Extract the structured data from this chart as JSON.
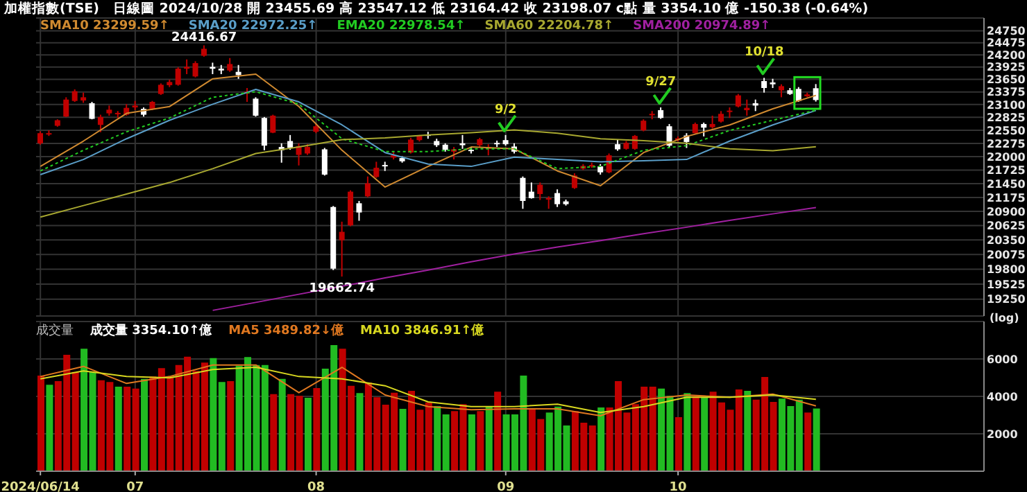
{
  "chart_data": [
    {
      "type": "candlestick",
      "title": "加權指數(TSE)",
      "subtitle": "日線圖 2024/10/28 開 23455.69 高 23547.12 低 23164.42 收 23198.07 c點 量 3354.10 億 -150.38 (-0.64%)",
      "ylabel": "(log)",
      "categories": [
        "2024/06/14",
        null,
        null,
        null,
        null,
        null,
        null,
        null,
        null,
        null,
        null,
        "07",
        null,
        null,
        null,
        null,
        null,
        null,
        null,
        null,
        null,
        null,
        null,
        null,
        null,
        null,
        null,
        null,
        null,
        null,
        null,
        null,
        "08",
        null,
        null,
        null,
        null,
        null,
        null,
        null,
        null,
        null,
        null,
        null,
        null,
        null,
        null,
        null,
        null,
        null,
        null,
        null,
        null,
        null,
        "09",
        null,
        null,
        null,
        null,
        null,
        null,
        null,
        null,
        null,
        null,
        null,
        null,
        null,
        null,
        null,
        null,
        null,
        null,
        null,
        "10",
        null,
        null,
        null,
        null,
        null,
        null,
        null,
        null,
        null,
        null,
        null,
        null,
        null,
        null,
        null,
        null,
        null,
        null,
        null,
        null,
        null,
        null,
        null,
        null,
        null,
        null,
        null,
        null,
        null,
        null,
        null,
        null,
        null,
        null,
        null
      ],
      "ohlc": [
        [
          22276,
          22528,
          22247,
          22489
        ],
        [
          22460,
          22548,
          22431,
          22489
        ],
        [
          22645,
          22783,
          22625,
          22763
        ],
        [
          22841,
          23258,
          22832,
          23208
        ],
        [
          23178,
          23431,
          23158,
          23390
        ],
        [
          23188,
          23360,
          23138,
          23258
        ],
        [
          23128,
          23158,
          22783,
          22793
        ],
        [
          22664,
          22881,
          22509,
          22832
        ],
        [
          22910,
          23078,
          22861,
          22989
        ],
        [
          22891,
          22959,
          22812,
          22920
        ],
        [
          22881,
          23108,
          22861,
          23028
        ],
        [
          23038,
          23178,
          22979,
          23078
        ],
        [
          23008,
          23038,
          22841,
          22881
        ],
        [
          23008,
          23178,
          22979,
          23158
        ],
        [
          23330,
          23562,
          23310,
          23532
        ],
        [
          23522,
          23644,
          23481,
          23593
        ],
        [
          23532,
          23920,
          23512,
          23889
        ],
        [
          23889,
          24097,
          23767,
          23930
        ],
        [
          23716,
          24056,
          23695,
          24014
        ],
        [
          24180,
          24416.67,
          24159,
          24338
        ],
        [
          23930,
          24024,
          23767,
          23889
        ],
        [
          23889,
          23972,
          23767,
          23849
        ],
        [
          23849,
          24128,
          23818,
          23993
        ],
        [
          23818,
          23972,
          23664,
          23746
        ],
        [
          23340,
          23461,
          23158,
          23380
        ],
        [
          23228,
          23258,
          22841,
          22861
        ],
        [
          22812,
          22832,
          22132,
          22228
        ],
        [
          22499,
          22881,
          22489,
          22861
        ],
        [
          22200,
          22276,
          21876,
          22132
        ],
        [
          22324,
          22450,
          22142,
          22180
        ],
        [
          22036,
          22276,
          21819,
          22218
        ],
        [
          22065,
          22257,
          22036,
          22200
        ],
        [
          22518,
          22683,
          22489,
          22635
        ],
        [
          22151,
          22180,
          21614,
          21633
        ],
        [
          20987,
          21006,
          19783,
          19809
        ],
        [
          20345,
          20700,
          19662.74,
          20504
        ],
        [
          20629,
          21317,
          20611,
          21290
        ],
        [
          21060,
          21106,
          20718,
          20879
        ],
        [
          21197,
          21595,
          21179,
          21456
        ],
        [
          21585,
          21895,
          21567,
          21772
        ],
        [
          21829,
          21895,
          21707,
          21800
        ],
        [
          21980,
          22103,
          21942,
          22027
        ],
        [
          21971,
          22008,
          21876,
          21904
        ],
        [
          22084,
          22391,
          22065,
          22353
        ],
        [
          22343,
          22450,
          22314,
          22431
        ],
        [
          22460,
          22518,
          22372,
          22440
        ],
        [
          22324,
          22372,
          22200,
          22237
        ],
        [
          22247,
          22276,
          22103,
          22142
        ],
        [
          22103,
          22200,
          21942,
          22151
        ],
        [
          22276,
          22450,
          22161,
          22237
        ],
        [
          22142,
          22200,
          22065,
          22122
        ],
        [
          22237,
          22391,
          22200,
          22362
        ],
        [
          22161,
          22257,
          22027,
          22200
        ],
        [
          22285,
          22333,
          22200,
          22266
        ],
        [
          22343,
          22450,
          22228,
          22257
        ],
        [
          22209,
          22276,
          22065,
          22103
        ],
        [
          21567,
          21595,
          20951,
          21106
        ],
        [
          21290,
          21474,
          21152,
          21161
        ],
        [
          21243,
          21474,
          21125,
          21428
        ],
        [
          21133,
          21197,
          20951,
          21161
        ],
        [
          21262,
          21336,
          20987,
          21042
        ],
        [
          21097,
          21133,
          21015,
          21042
        ],
        [
          21363,
          21660,
          21345,
          21614
        ],
        [
          21754,
          21847,
          21726,
          21810
        ],
        [
          21800,
          21876,
          21772,
          21829
        ],
        [
          21800,
          21847,
          21633,
          21679
        ],
        [
          21679,
          22065,
          21660,
          22027
        ],
        [
          22257,
          22353,
          22122,
          22151
        ],
        [
          22161,
          22324,
          22142,
          22285
        ],
        [
          22161,
          22450,
          22142,
          22431
        ],
        [
          22548,
          22783,
          22528,
          22753
        ],
        [
          22871,
          22959,
          22783,
          22900
        ],
        [
          22979,
          23038,
          22793,
          22812
        ],
        [
          22635,
          22683,
          22200,
          22228
        ],
        [
          22343,
          22421,
          22314,
          22382
        ],
        [
          22440,
          22489,
          22180,
          22304
        ],
        [
          22489,
          22713,
          22470,
          22683
        ],
        [
          22683,
          22713,
          22421,
          22606
        ],
        [
          22615,
          22861,
          22586,
          22683
        ],
        [
          22734,
          22959,
          22713,
          22900
        ],
        [
          22940,
          23038,
          22812,
          22969
        ],
        [
          23058,
          23330,
          23038,
          23299
        ],
        [
          22979,
          23208,
          22861,
          23028
        ],
        [
          23128,
          23208,
          22959,
          23078
        ],
        [
          23613,
          23685,
          23360,
          23461
        ],
        [
          23583,
          23664,
          23461,
          23542
        ],
        [
          23411,
          23542,
          23258,
          23501
        ],
        [
          23411,
          23461,
          23310,
          23330
        ],
        [
          23441,
          23481,
          23158,
          23178
        ],
        [
          23279,
          23360,
          23258,
          23320
        ],
        [
          23455.69,
          23547.12,
          23164.42,
          23198.07
        ],
        null,
        null,
        null,
        null,
        null,
        null,
        null,
        null,
        null,
        null,
        null,
        null,
        null,
        null,
        null,
        null,
        null,
        null,
        null
      ],
      "colors": [
        "#c00000",
        "#c00000",
        "#c00000",
        "#c00000",
        "#c00000",
        "#c00000",
        "#ffffff",
        "#c00000",
        "#c00000",
        "#c00000",
        "#c00000",
        "#c00000",
        "#ffffff",
        "#c00000",
        "#c00000",
        "#c00000",
        "#c00000",
        "#c00000",
        "#c00000",
        "#c00000",
        "#ffffff",
        "#ffffff",
        "#c00000",
        "#ffffff",
        "#c00000",
        "#ffffff",
        "#ffffff",
        "#c00000",
        "#ffffff",
        "#ffffff",
        "#c00000",
        "#c00000",
        "#c00000",
        "#ffffff",
        "#ffffff",
        "#c00000",
        "#c00000",
        "#ffffff",
        "#c00000",
        "#c00000",
        "#ffffff",
        "#c00000",
        "#ffffff",
        "#c00000",
        "#c00000",
        "#ffffff",
        "#ffffff",
        "#ffffff",
        "#c00000",
        "#ffffff",
        "#ffffff",
        "#c00000",
        "#c00000",
        "#ffffff",
        "#ffffff",
        "#ffffff",
        "#ffffff",
        "#ffffff",
        "#c00000",
        "#c00000",
        "#ffffff",
        "#ffffff",
        "#c00000",
        "#c00000",
        "#c00000",
        "#ffffff",
        "#c00000",
        "#ffffff",
        "#c00000",
        "#c00000",
        "#c00000",
        "#c00000",
        "#ffffff",
        "#ffffff",
        "#c00000",
        "#ffffff",
        "#c00000",
        "#ffffff",
        "#c00000",
        "#c00000",
        "#c00000",
        "#c00000",
        "#c00000",
        "#ffffff",
        "#ffffff",
        "#ffffff",
        "#c00000",
        "#ffffff",
        "#ffffff",
        "#c00000",
        "#ffffff",
        null,
        null,
        null,
        null,
        null,
        null,
        null,
        null,
        null,
        null,
        null,
        null,
        null,
        null,
        null,
        null,
        null,
        null,
        null
      ],
      "series": [
        {
          "type": "line",
          "name": "SMA10 23299.59↑",
          "color": "#d08a30",
          "values": [
            21800,
            null,
            null,
            null,
            null,
            22324,
            null,
            null,
            null,
            null,
            22910,
            null,
            null,
            null,
            null,
            23058,
            null,
            null,
            null,
            null,
            23664,
            null,
            null,
            null,
            null,
            23767,
            null,
            null,
            null,
            null,
            23058,
            null,
            null,
            null,
            null,
            22132,
            null,
            null,
            null,
            null,
            21382,
            null,
            null,
            null,
            null,
            21800,
            null,
            null,
            null,
            null,
            22200,
            null,
            null,
            null,
            null,
            22161,
            null,
            null,
            null,
            null,
            21707,
            null,
            null,
            null,
            null,
            21410,
            null,
            null,
            null,
            null,
            22084,
            null,
            null,
            null,
            null,
            22421,
            null,
            null,
            null,
            null,
            22664,
            null,
            null,
            null,
            null,
            23008,
            null,
            null,
            null,
            null,
            23299.59,
            null,
            null,
            null,
            null,
            null,
            null,
            null,
            null,
            null,
            null,
            null,
            null,
            null,
            null,
            null,
            null,
            null,
            null,
            null
          ]
        },
        {
          "type": "line",
          "name": "SMA20 22972.25↑",
          "color": "#5a9ec8",
          "values": [
            21633,
            null,
            null,
            null,
            null,
            21942,
            null,
            null,
            null,
            null,
            22372,
            null,
            null,
            null,
            null,
            22763,
            null,
            null,
            null,
            null,
            23108,
            null,
            null,
            null,
            null,
            23431,
            null,
            null,
            null,
            null,
            23158,
            null,
            null,
            null,
            null,
            22664,
            null,
            null,
            null,
            null,
            22084,
            null,
            null,
            null,
            null,
            21847,
            null,
            null,
            null,
            null,
            21800,
            null,
            null,
            null,
            null,
            21990,
            null,
            null,
            null,
            null,
            21942,
            null,
            null,
            null,
            null,
            21895,
            null,
            null,
            null,
            null,
            21914,
            null,
            null,
            null,
            null,
            21942,
            null,
            null,
            null,
            null,
            22324,
            null,
            null,
            null,
            null,
            22664,
            null,
            null,
            null,
            null,
            22972.25,
            null,
            null,
            null,
            null,
            null,
            null,
            null,
            null,
            null,
            null,
            null,
            null,
            null,
            null,
            null,
            null,
            null,
            null,
            null
          ]
        },
        {
          "type": "line",
          "name": "EMA20 22978.54↑",
          "color": "#22cc22",
          "line_style": "dotted",
          "values": [
            21707,
            null,
            null,
            null,
            null,
            22132,
            null,
            null,
            null,
            null,
            22518,
            null,
            null,
            null,
            null,
            22812,
            null,
            null,
            null,
            null,
            23258,
            null,
            null,
            null,
            null,
            23380,
            null,
            null,
            null,
            null,
            23108,
            null,
            null,
            null,
            null,
            22372,
            null,
            null,
            null,
            null,
            22103,
            null,
            null,
            null,
            null,
            22103,
            null,
            null,
            null,
            null,
            22161,
            null,
            null,
            null,
            null,
            22161,
            null,
            null,
            null,
            null,
            21754,
            null,
            null,
            null,
            null,
            21800,
            null,
            null,
            null,
            null,
            22132,
            null,
            null,
            null,
            null,
            22228,
            null,
            null,
            null,
            null,
            22548,
            null,
            null,
            null,
            null,
            22763,
            null,
            null,
            null,
            null,
            22978.54,
            null,
            null,
            null,
            null,
            null,
            null,
            null,
            null,
            null,
            null,
            null,
            null,
            null,
            null,
            null,
            null,
            null,
            null,
            null
          ]
        },
        {
          "type": "line",
          "name": "SMA60 22204.78↑",
          "color": "#a8a830",
          "values": [
            20790,
            null,
            null,
            null,
            null,
            21015,
            null,
            null,
            null,
            null,
            21243,
            null,
            null,
            null,
            null,
            21474,
            null,
            null,
            null,
            null,
            21754,
            null,
            null,
            null,
            null,
            22065,
            null,
            null,
            null,
            null,
            22200,
            null,
            null,
            null,
            null,
            22353,
            null,
            null,
            null,
            null,
            22391,
            null,
            null,
            null,
            null,
            22450,
            null,
            null,
            null,
            null,
            22499,
            null,
            null,
            null,
            null,
            22557,
            null,
            null,
            null,
            null,
            22489,
            null,
            null,
            null,
            null,
            22372,
            null,
            null,
            null,
            null,
            22333,
            null,
            null,
            null,
            null,
            22276,
            null,
            null,
            null,
            null,
            22161,
            null,
            null,
            null,
            null,
            22122,
            null,
            null,
            null,
            null,
            22204.78,
            null,
            null,
            null,
            null,
            null,
            null,
            null,
            null,
            null,
            null,
            null,
            null,
            null,
            null,
            null,
            null,
            null,
            null,
            null
          ]
        },
        {
          "type": "line",
          "name": "SMA200 20974.89↑",
          "color": "#a020a0",
          "values": [
            null,
            null,
            null,
            null,
            null,
            null,
            null,
            null,
            null,
            null,
            null,
            null,
            null,
            null,
            null,
            null,
            null,
            null,
            null,
            null,
            19050,
            null,
            null,
            null,
            null,
            19193,
            null,
            null,
            null,
            null,
            19340,
            null,
            null,
            null,
            null,
            19485,
            null,
            null,
            null,
            null,
            19638,
            null,
            null,
            null,
            null,
            19783,
            null,
            null,
            null,
            null,
            19937,
            null,
            null,
            null,
            null,
            20083,
            null,
            null,
            null,
            null,
            20213,
            null,
            null,
            null,
            null,
            20337,
            null,
            null,
            null,
            null,
            20469,
            null,
            null,
            null,
            null,
            20593,
            null,
            null,
            null,
            null,
            20727,
            null,
            null,
            null,
            null,
            20852,
            null,
            null,
            null,
            null,
            20974.89,
            null,
            null,
            null,
            null,
            null,
            null,
            null,
            null,
            null,
            null,
            null,
            null,
            null,
            null,
            null,
            null,
            null,
            null,
            null
          ]
        }
      ],
      "ylim": [
        18950,
        25050
      ],
      "yticks": [
        19250,
        19525,
        19800,
        20075,
        20350,
        20625,
        20900,
        21175,
        21450,
        21725,
        22000,
        22275,
        22550,
        22825,
        23100,
        23375,
        23650,
        23925,
        24200,
        24475,
        24750
      ],
      "log": "y",
      "grid": true,
      "legend": "top left",
      "tick_labels": "y",
      "annotations": [
        "24416.67",
        "19662.74",
        "9/2",
        "9/27",
        "10/18"
      ]
    },
    {
      "type": "bar",
      "title": "成交量",
      "categories": [
        "2024/06/14",
        null,
        null,
        null,
        null,
        null,
        null,
        null,
        null,
        null,
        null,
        "07",
        null,
        null,
        null,
        null,
        null,
        null,
        null,
        null,
        null,
        null,
        null,
        null,
        null,
        null,
        null,
        null,
        null,
        null,
        null,
        null,
        "08",
        null,
        null,
        null,
        null,
        null,
        null,
        null,
        null,
        null,
        null,
        null,
        null,
        null,
        null,
        null,
        null,
        null,
        null,
        null,
        null,
        null,
        "09",
        null,
        null,
        null,
        null,
        null,
        null,
        null,
        null,
        null,
        null,
        null,
        null,
        null,
        null,
        null,
        null,
        null,
        null,
        null,
        "10",
        null,
        null,
        null,
        null,
        null,
        null,
        null,
        null,
        null,
        null,
        null,
        null,
        null,
        null,
        null,
        null,
        null,
        null,
        null,
        null,
        null,
        null,
        null,
        null,
        null,
        null,
        null,
        null,
        null,
        null,
        null,
        null,
        null,
        null,
        null
      ],
      "series": [
        {
          "type": "bar",
          "name": "成交量 3354.10↑億",
          "values": [
            5111,
            4617,
            4815,
            6222,
            5308,
            6543,
            5308,
            4864,
            4765,
            4518,
            4518,
            4420,
            4938,
            5061,
            5506,
            5061,
            5679,
            6123,
            5358,
            5802,
            6049,
            4765,
            4815,
            5629,
            6098,
            5679,
            5679,
            4123,
            4938,
            4123,
            4024,
            3926,
            4444,
            5481,
            6740,
            6543,
            4568,
            4173,
            4740,
            3950,
            3555,
            4197,
            3333,
            4296,
            3284,
            3679,
            3481,
            3037,
            3210,
            3580,
            3037,
            3210,
            3457,
            4247,
            3037,
            3037,
            5111,
            3333,
            2790,
            3136,
            3457,
            2444,
            3210,
            2592,
            2444,
            3407,
            3407,
            4815,
            3136,
            3580,
            4518,
            4518,
            4420,
            4024,
            2889,
            4173,
            4024,
            3926,
            4247,
            3679,
            3284,
            4370,
            4296,
            3827,
            5037,
            3704,
            3876,
            3481,
            3827,
            3136,
            3354.1,
            null,
            null,
            null,
            null,
            null,
            null,
            null,
            null,
            null,
            null,
            null,
            null,
            null,
            null,
            null,
            null,
            null,
            null,
            null
          ],
          "colors": [
            "#c00000",
            "#22bb22",
            "#c00000",
            "#c00000",
            "#c00000",
            "#22bb22",
            "#22bb22",
            "#c00000",
            "#c00000",
            "#22bb22",
            "#c00000",
            "#c00000",
            "#22bb22",
            "#c00000",
            "#c00000",
            "#c00000",
            "#c00000",
            "#c00000",
            "#c00000",
            "#c00000",
            "#22bb22",
            "#22bb22",
            "#c00000",
            "#22bb22",
            "#22bb22",
            "#22bb22",
            "#22bb22",
            "#c00000",
            "#22bb22",
            "#c00000",
            "#c00000",
            "#22bb22",
            "#c00000",
            "#22bb22",
            "#22bb22",
            "#c00000",
            "#c00000",
            "#22bb22",
            "#c00000",
            "#c00000",
            "#c00000",
            "#c00000",
            "#22bb22",
            "#c00000",
            "#c00000",
            "#c00000",
            "#22bb22",
            "#22bb22",
            "#c00000",
            "#c00000",
            "#22bb22",
            "#c00000",
            "#22bb22",
            "#c00000",
            "#22bb22",
            "#22bb22",
            "#22bb22",
            "#c00000",
            "#c00000",
            "#22bb22",
            "#22bb22",
            "#22bb22",
            "#c00000",
            "#c00000",
            "#c00000",
            "#22bb22",
            "#c00000",
            "#c00000",
            "#c00000",
            "#c00000",
            "#c00000",
            "#c00000",
            "#22bb22",
            "#22bb22",
            "#c00000",
            "#22bb22",
            "#c00000",
            "#22bb22",
            "#c00000",
            "#c00000",
            "#c00000",
            "#c00000",
            "#22bb22",
            "#c00000",
            "#c00000",
            "#c00000",
            "#22bb22",
            "#22bb22",
            "#22bb22",
            "#c00000",
            "#22bb22",
            null,
            null,
            null,
            null,
            null,
            null,
            null,
            null,
            null,
            null,
            null,
            null,
            null,
            null,
            null,
            null,
            null,
            null,
            null
          ]
        },
        {
          "type": "line",
          "name": "MA5 3489.82↓億",
          "color": "#e07820",
          "values": [
            5061,
            null,
            null,
            null,
            null,
            5605,
            null,
            null,
            null,
            null,
            4691,
            null,
            null,
            null,
            null,
            5061,
            null,
            null,
            null,
            null,
            5679,
            null,
            null,
            null,
            null,
            5679,
            null,
            null,
            null,
            null,
            4197,
            null,
            null,
            null,
            null,
            5555,
            null,
            null,
            null,
            null,
            4074,
            null,
            null,
            null,
            null,
            3457,
            null,
            null,
            null,
            null,
            3284,
            null,
            null,
            null,
            null,
            3333,
            null,
            null,
            null,
            null,
            3333,
            null,
            null,
            null,
            null,
            2963,
            null,
            null,
            null,
            null,
            3827,
            null,
            null,
            null,
            null,
            4074,
            null,
            null,
            null,
            null,
            3950,
            null,
            null,
            null,
            null,
            4123,
            null,
            null,
            null,
            null,
            3489.82,
            null,
            null,
            null,
            null,
            null,
            null,
            null,
            null,
            null,
            null,
            null,
            null,
            null,
            null,
            null,
            null,
            null,
            null,
            null
          ]
        },
        {
          "type": "line",
          "name": "MA10 3846.91↑億",
          "color": "#d8d820",
          "values": [
            4938,
            null,
            null,
            null,
            null,
            5358,
            null,
            null,
            null,
            null,
            5061,
            null,
            null,
            null,
            null,
            4987,
            null,
            null,
            null,
            null,
            5432,
            null,
            null,
            null,
            null,
            5555,
            null,
            null,
            null,
            null,
            5061,
            null,
            null,
            null,
            null,
            4938,
            null,
            null,
            null,
            null,
            4568,
            null,
            null,
            null,
            null,
            3704,
            null,
            null,
            null,
            null,
            3457,
            null,
            null,
            null,
            null,
            3457,
            null,
            null,
            null,
            null,
            3580,
            null,
            null,
            null,
            null,
            3136,
            null,
            null,
            null,
            null,
            3457,
            null,
            null,
            null,
            null,
            3950,
            null,
            null,
            null,
            null,
            3950,
            null,
            null,
            null,
            null,
            4074,
            null,
            null,
            null,
            null,
            3846.91,
            null,
            null,
            null,
            null,
            null,
            null,
            null,
            null,
            null,
            null,
            null,
            null,
            null,
            null,
            null,
            null,
            null,
            null,
            null
          ]
        }
      ],
      "ylim": [
        0,
        8000
      ],
      "yticks": [
        2000,
        4000,
        6000
      ],
      "grid": true,
      "legend": "top left"
    }
  ]
}
